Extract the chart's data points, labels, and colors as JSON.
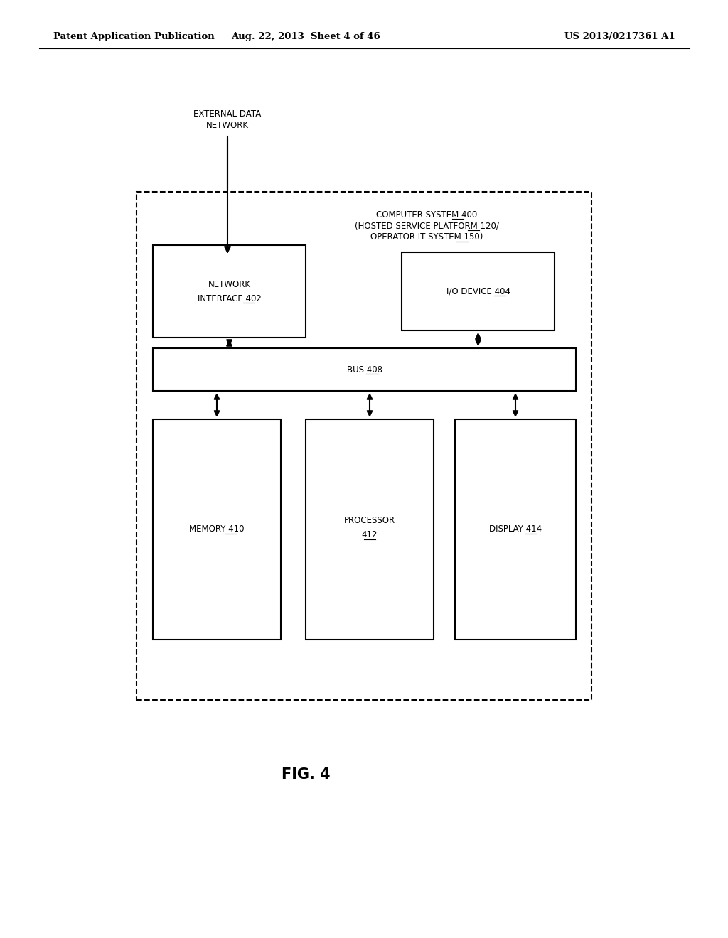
{
  "bg_color": "#ffffff",
  "header_left": "Patent Application Publication",
  "header_mid": "Aug. 22, 2013  Sheet 4 of 46",
  "header_right": "US 2013/0217361 A1",
  "fig_label": "FIG. 4",
  "ext_label_line1": "EXTERNAL DATA",
  "ext_label_line2": "NETWORK",
  "cs_line1": "COMPUTER SYSTEM 400",
  "cs_line2": "(HOSTED SERVICE PLATFORM 120/",
  "cs_line3": "OPERATOR IT SYSTEM 150)",
  "ni_line1": "NETWORK",
  "ni_line2": "INTERFACE 402",
  "io_label": "I/O DEVICE 404",
  "bus_label": "BUS 408",
  "mem_label": "MEMORY 410",
  "proc_line1": "PROCESSOR",
  "proc_line2": "412",
  "disp_label": "DISPLAY 414",
  "font_size_header": 9.5,
  "font_size_body": 8.5,
  "font_size_fig": 15
}
